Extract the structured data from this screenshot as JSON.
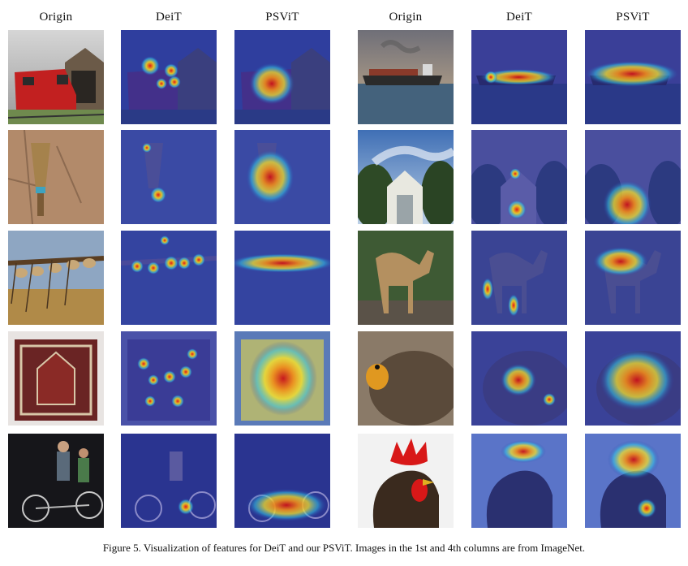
{
  "headers": {
    "left": [
      "Origin",
      "DeiT",
      "PSViT"
    ],
    "right": [
      "Origin",
      "DeiT",
      "PSViT"
    ]
  },
  "rows": [
    {
      "left_subject": "red electric train at depot",
      "right_subject": "container ship on sea"
    },
    {
      "left_subject": "broom hanging on plaster wall",
      "right_subject": "greenhouse among trees"
    },
    {
      "left_subject": "bundles of twigs on rack",
      "right_subject": "camel standing in yard"
    },
    {
      "left_subject": "prayer rug",
      "right_subject": "prairie chicken"
    },
    {
      "left_subject": "tandem bicycle riders at night",
      "right_subject": "rooster head"
    }
  ],
  "caption": "Figure 5. Visualization of features for DeiT and our PSViT. Images in the 1st and 4th columns are from ImageNet.",
  "colors": {
    "overlay": "#2a3aa8",
    "heat_hot": "#e0201a",
    "heat_warm": "#f5d21a",
    "heat_cool": "#36c8e8"
  }
}
